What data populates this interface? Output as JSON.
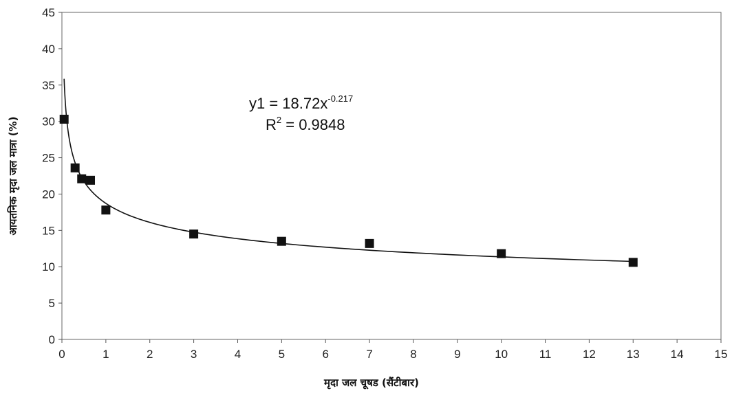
{
  "chart_data": {
    "type": "scatter",
    "title": "",
    "xlabel": "मृदा जल चूषड (सैंटीबार)",
    "ylabel": "आयतनिक मृदा जल मात्रा (%)",
    "xlim": [
      0,
      15
    ],
    "ylim": [
      0,
      45
    ],
    "xticks": [
      0,
      1,
      2,
      3,
      4,
      5,
      6,
      7,
      8,
      9,
      10,
      11,
      12,
      13,
      14,
      15
    ],
    "yticks": [
      0,
      5,
      10,
      15,
      20,
      25,
      30,
      35,
      40,
      45
    ],
    "grid": false,
    "legend": "none",
    "series": [
      {
        "marker": "square",
        "color": "#111111",
        "x": [
          0.05,
          0.3,
          0.45,
          0.65,
          1.0,
          3.0,
          5.0,
          7.0,
          10.0,
          13.0
        ],
        "y": [
          30.3,
          23.6,
          22.1,
          21.9,
          17.8,
          14.5,
          13.5,
          13.2,
          11.8,
          10.6
        ]
      }
    ],
    "trendline": {
      "type": "power",
      "coefficient": 18.72,
      "exponent": -0.217,
      "x_range": [
        0.05,
        13.0
      ],
      "color": "#111111"
    },
    "annotation": {
      "line1_prefix": "y1 = 18.72x",
      "line1_exponent": "-0.217",
      "line2_prefix": "R",
      "line2_sup": "2",
      "line2_value": " = 0.9848"
    }
  }
}
